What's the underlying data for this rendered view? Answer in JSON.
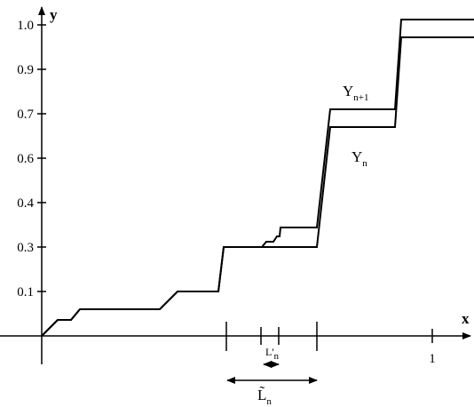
{
  "axis": {
    "y_label": "y",
    "x_label": "x",
    "y_ticks": [
      "1.0",
      "0.9",
      "0.7",
      "0.6",
      "0.4",
      "0.3",
      "0.1"
    ],
    "x_tick": "1"
  },
  "curve_labels": [
    {
      "base": "Y",
      "sub": "n+1"
    },
    {
      "base": "Y",
      "sub": "n"
    }
  ],
  "intervals": [
    {
      "base": "L'",
      "sub": "n"
    },
    {
      "base": "L̃",
      "sub": "n"
    }
  ]
}
